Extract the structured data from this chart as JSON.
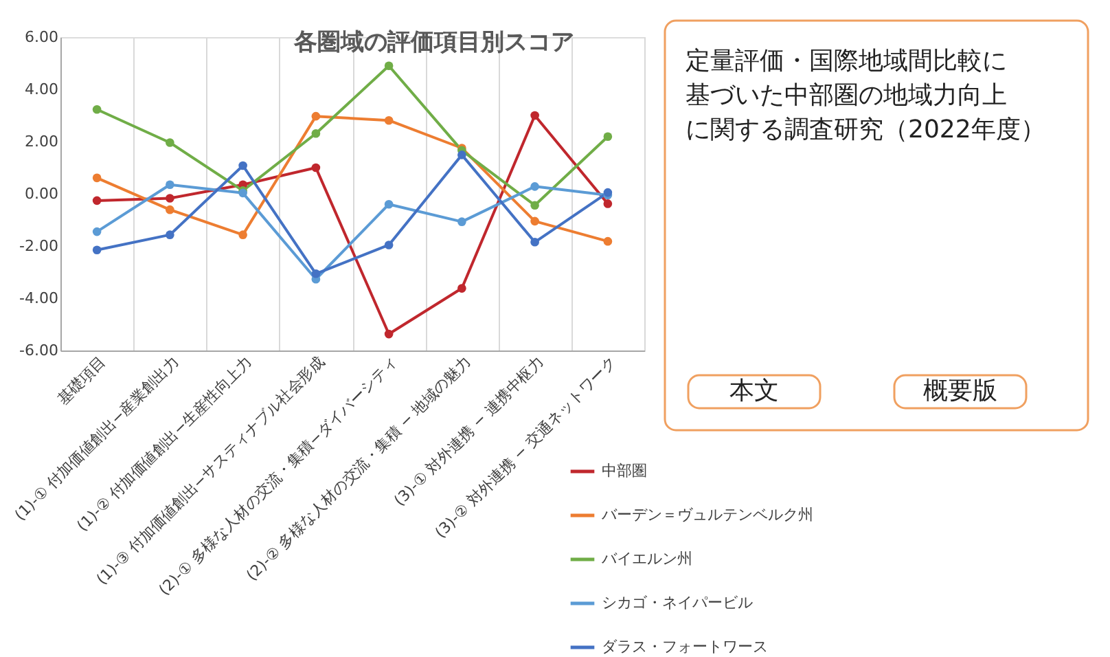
{
  "chart_data": {
    "type": "line",
    "title": "各圏域の評価項目別スコア",
    "categories": [
      "基礎項目",
      "(1)-① 付加価値創出−産業創出力",
      "(1)-② 付加価値創出−生産性向上力",
      "(1)-③ 付加価値創出−サスティナブル社会形成",
      "(2)-① 多様な人材の交流・集積−ダイバーシティ",
      "(2)-② 多様な人材の交流・集積 − 地域の魅力",
      "(3)-① 対外連携 − 連携中枢力",
      "(3)-② 対外連携 − 交通ネットワーク"
    ],
    "series": [
      {
        "name": "中部圏",
        "color": "#c0272d",
        "values": [
          -0.26,
          -0.17,
          0.35,
          1.0,
          -5.37,
          -3.62,
          3.0,
          -0.38
        ]
      },
      {
        "name": "バーデン＝ヴュルテンベルク州",
        "color": "#ed7d31",
        "values": [
          0.61,
          -0.61,
          -1.57,
          2.97,
          2.81,
          1.75,
          -1.05,
          -1.82
        ]
      },
      {
        "name": "バイエルン州",
        "color": "#70ad47",
        "values": [
          3.23,
          1.96,
          0.12,
          2.31,
          4.9,
          1.66,
          -0.44,
          2.19
        ]
      },
      {
        "name": "シカゴ・ネイパービル",
        "color": "#5b9bd5",
        "values": [
          -1.45,
          0.35,
          0.03,
          -3.27,
          -0.4,
          -1.07,
          0.28,
          -0.05
        ]
      },
      {
        "name": "ダラス・フォートワース",
        "color": "#4472c4",
        "values": [
          -2.15,
          -1.57,
          1.08,
          -3.06,
          -1.96,
          1.49,
          -1.85,
          0.05
        ]
      }
    ],
    "ylim": [
      -6,
      6
    ],
    "yticks": [
      {
        "value": -6,
        "label": "-6.00"
      },
      {
        "value": -4,
        "label": "-4.00"
      },
      {
        "value": -2,
        "label": "-2.00"
      },
      {
        "value": 0,
        "label": "0.00"
      },
      {
        "value": 2,
        "label": "2.00"
      },
      {
        "value": 4,
        "label": "4.00"
      },
      {
        "value": 6,
        "label": "6.00"
      }
    ],
    "grid": "x",
    "legend": "right",
    "marker": "circle",
    "line_style": "solid",
    "annotations": [
      "定量評価・国際地域間比較に基づいた中部圏の地域力向上に関する調査研究（2022年度）",
      "本文",
      "概要版"
    ]
  }
}
